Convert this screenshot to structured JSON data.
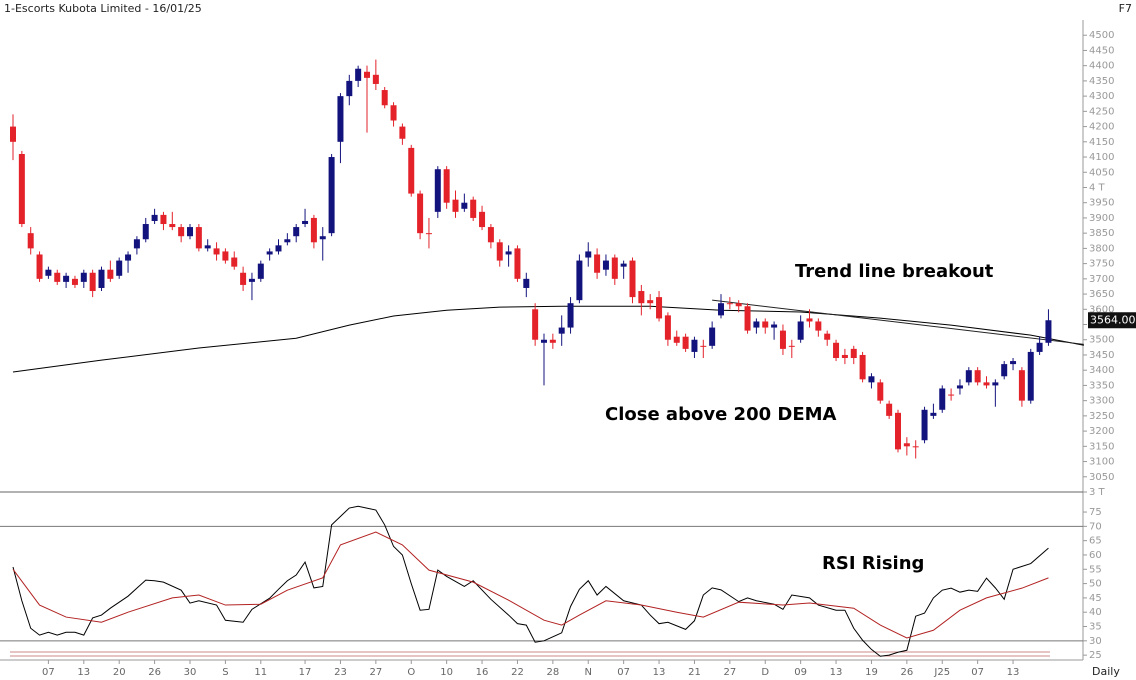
{
  "header": {
    "title": "1-Escorts Kubota Limited - 16/01/25",
    "shortcut": "F7",
    "timeframe": "Daily"
  },
  "chart_data": [
    {
      "type": "candlestick",
      "up_color": "#13137e",
      "down_color": "#e3222a",
      "open": [
        4200,
        4110,
        3850,
        3780,
        3710,
        3720,
        3690,
        3700,
        3690,
        3720,
        3670,
        3730,
        3710,
        3760,
        3800,
        3830,
        3890,
        3910,
        3880,
        3870,
        3840,
        3870,
        3800,
        3800,
        3790,
        3770,
        3720,
        3690,
        3700,
        3780,
        3790,
        3820,
        3840,
        3880,
        3900,
        3830,
        3850,
        4150,
        4300,
        4350,
        4380,
        4370,
        4320,
        4270,
        4200,
        4130,
        3980,
        3850,
        3920,
        4060,
        3960,
        3930,
        3960,
        3920,
        3870,
        3820,
        3780,
        3800,
        3670,
        3600,
        3490,
        3500,
        3520,
        3540,
        3630,
        3770,
        3780,
        3730,
        3770,
        3740,
        3760,
        3660,
        3630,
        3640,
        3580,
        3510,
        3510,
        3460,
        3480,
        3480,
        3580,
        3620,
        3620,
        3610,
        3540,
        3560,
        3540,
        3530,
        3480,
        3500,
        3570,
        3560,
        3520,
        3490,
        3450,
        3470,
        3450,
        3360,
        3360,
        3290,
        3260,
        3160,
        3150,
        3170,
        3250,
        3270,
        3320,
        3340,
        3360,
        3400,
        3360,
        3350,
        3380,
        3420,
        3400,
        3300,
        3460,
        3490
      ],
      "high": [
        4240,
        4120,
        3870,
        3790,
        3740,
        3730,
        3720,
        3710,
        3730,
        3730,
        3740,
        3760,
        3770,
        3790,
        3840,
        3900,
        3930,
        3920,
        3920,
        3880,
        3880,
        3880,
        3830,
        3820,
        3800,
        3790,
        3740,
        3720,
        3760,
        3800,
        3830,
        3850,
        3880,
        3930,
        3910,
        3870,
        4110,
        4310,
        4370,
        4400,
        4400,
        4420,
        4330,
        4280,
        4210,
        4140,
        3990,
        3900,
        4070,
        4070,
        3990,
        3980,
        3970,
        3940,
        3880,
        3830,
        3810,
        3810,
        3720,
        3620,
        3520,
        3520,
        3580,
        3640,
        3780,
        3820,
        3800,
        3780,
        3780,
        3760,
        3770,
        3680,
        3650,
        3660,
        3590,
        3530,
        3520,
        3510,
        3500,
        3560,
        3650,
        3640,
        3630,
        3620,
        3570,
        3570,
        3560,
        3550,
        3500,
        3580,
        3600,
        3570,
        3530,
        3500,
        3470,
        3480,
        3460,
        3390,
        3370,
        3300,
        3270,
        3180,
        3170,
        3280,
        3290,
        3350,
        3340,
        3370,
        3410,
        3410,
        3380,
        3370,
        3430,
        3440,
        3410,
        3470,
        3510,
        3600
      ],
      "low": [
        4090,
        3870,
        3780,
        3690,
        3700,
        3680,
        3670,
        3670,
        3670,
        3640,
        3660,
        3690,
        3700,
        3720,
        3780,
        3820,
        3880,
        3860,
        3860,
        3820,
        3830,
        3790,
        3790,
        3760,
        3750,
        3730,
        3660,
        3630,
        3690,
        3760,
        3780,
        3810,
        3820,
        3870,
        3800,
        3760,
        3840,
        4080,
        4270,
        4330,
        4180,
        4320,
        4260,
        4200,
        4140,
        3970,
        3830,
        3800,
        3900,
        3930,
        3900,
        3920,
        3890,
        3860,
        3800,
        3740,
        3740,
        3690,
        3640,
        3480,
        3350,
        3470,
        3480,
        3520,
        3620,
        3740,
        3700,
        3710,
        3680,
        3700,
        3620,
        3580,
        3600,
        3560,
        3480,
        3480,
        3460,
        3440,
        3440,
        3470,
        3570,
        3600,
        3590,
        3520,
        3520,
        3520,
        3500,
        3450,
        3440,
        3490,
        3540,
        3510,
        3480,
        3430,
        3420,
        3420,
        3360,
        3340,
        3290,
        3240,
        3130,
        3120,
        3110,
        3160,
        3240,
        3260,
        3300,
        3320,
        3350,
        3350,
        3340,
        3280,
        3370,
        3400,
        3280,
        3290,
        3450,
        3480
      ],
      "close": [
        4150,
        3880,
        3800,
        3700,
        3730,
        3690,
        3710,
        3680,
        3720,
        3660,
        3730,
        3700,
        3760,
        3780,
        3830,
        3880,
        3910,
        3880,
        3870,
        3840,
        3870,
        3800,
        3810,
        3780,
        3760,
        3740,
        3680,
        3700,
        3750,
        3790,
        3810,
        3830,
        3870,
        3890,
        3820,
        3840,
        4100,
        4300,
        4350,
        4390,
        4360,
        4340,
        4270,
        4220,
        4160,
        3980,
        3850,
        3850,
        4060,
        3950,
        3920,
        3950,
        3900,
        3870,
        3820,
        3760,
        3790,
        3700,
        3700,
        3500,
        3500,
        3490,
        3540,
        3620,
        3760,
        3790,
        3720,
        3760,
        3700,
        3750,
        3640,
        3620,
        3620,
        3570,
        3500,
        3490,
        3470,
        3500,
        3480,
        3540,
        3620,
        3620,
        3610,
        3530,
        3560,
        3540,
        3550,
        3470,
        3480,
        3560,
        3560,
        3530,
        3500,
        3440,
        3440,
        3440,
        3370,
        3380,
        3300,
        3250,
        3140,
        3150,
        3150,
        3270,
        3260,
        3340,
        3320,
        3350,
        3400,
        3360,
        3350,
        3360,
        3420,
        3430,
        3300,
        3460,
        3490,
        3564
      ],
      "lines": [
        {
          "color": "#000000",
          "x": [
            0,
            10,
            21,
            32,
            38,
            43,
            49,
            55,
            62,
            72,
            80,
            89,
            98,
            106,
            115,
            121
          ],
          "values": [
            3394,
            3433,
            3473,
            3505,
            3548,
            3578,
            3597,
            3607,
            3610,
            3610,
            3597,
            3591,
            3571,
            3548,
            3515,
            3482
          ]
        },
        {
          "color": "#222222",
          "x": [
            79,
            121
          ],
          "values": [
            3630,
            3485
          ]
        }
      ],
      "last_price": {
        "value": 3564,
        "label": "3564.00"
      },
      "ylim": [
        3000,
        4550
      ],
      "yticks": [
        {
          "value": 3000,
          "label": "3 T"
        },
        3050,
        3100,
        3150,
        3200,
        3250,
        3300,
        3350,
        3400,
        3450,
        3500,
        3550,
        3600,
        3650,
        3700,
        3750,
        3800,
        3850,
        3900,
        3950,
        {
          "value": 4000,
          "label": "4 T"
        },
        4050,
        4100,
        4150,
        4200,
        4250,
        4300,
        4350,
        4400,
        4450,
        4500
      ],
      "xticks": [
        {
          "value": 4,
          "label": "07"
        },
        {
          "value": 8,
          "label": "13"
        },
        {
          "value": 12,
          "label": "20"
        },
        {
          "value": 16,
          "label": "26"
        },
        {
          "value": 20,
          "label": "30"
        },
        {
          "value": 24,
          "label": "S"
        },
        {
          "value": 28,
          "label": "11"
        },
        {
          "value": 33,
          "label": "17"
        },
        {
          "value": 37,
          "label": "23"
        },
        {
          "value": 41,
          "label": "27"
        },
        {
          "value": 45,
          "label": "O"
        },
        {
          "value": 49,
          "label": "10"
        },
        {
          "value": 53,
          "label": "16"
        },
        {
          "value": 57,
          "label": "22"
        },
        {
          "value": 61,
          "label": "28"
        },
        {
          "value": 65,
          "label": "N"
        },
        {
          "value": 69,
          "label": "07"
        },
        {
          "value": 73,
          "label": "13"
        },
        {
          "value": 77,
          "label": "21"
        },
        {
          "value": 81,
          "label": "27"
        },
        {
          "value": 85,
          "label": "D"
        },
        {
          "value": 89,
          "label": "09"
        },
        {
          "value": 93,
          "label": "13"
        },
        {
          "value": 97,
          "label": "19"
        },
        {
          "value": 101,
          "label": "26"
        },
        {
          "value": 105,
          "label": "J25"
        },
        {
          "value": 109,
          "label": "07"
        },
        {
          "value": 113,
          "label": "13"
        }
      ],
      "annotations": [
        "Trend line breakout",
        "Close above 200 DEMA"
      ]
    },
    {
      "type": "line",
      "series": [
        {
          "color": "#000000",
          "x": [
            0,
            1,
            2,
            3,
            4,
            5,
            6,
            7,
            8,
            9,
            10,
            11,
            13,
            14,
            15,
            16,
            17,
            19,
            20,
            21,
            23,
            24,
            26,
            27,
            29,
            30,
            31,
            32,
            33,
            34,
            35,
            36,
            38,
            39,
            41,
            42,
            43,
            44,
            45,
            46,
            47,
            48,
            49,
            51,
            52,
            54,
            56,
            57,
            58,
            59,
            60,
            62,
            63,
            64,
            65,
            66,
            67,
            69,
            71,
            72,
            73,
            74,
            76,
            77,
            78,
            79,
            80,
            82,
            83,
            84,
            86,
            87,
            88,
            90,
            91,
            93,
            94,
            95,
            96,
            97,
            98,
            99,
            100,
            101,
            102,
            103,
            104,
            105,
            106,
            107,
            108,
            109,
            110,
            111,
            112,
            113,
            115,
            117
          ],
          "values": [
            55.8,
            44,
            34.4,
            32,
            33,
            32,
            33,
            33,
            32,
            38,
            39,
            41.4,
            45.6,
            48.4,
            51.2,
            51,
            50.5,
            47.7,
            43.2,
            44,
            42.5,
            37.2,
            36.5,
            41,
            44.9,
            48,
            51,
            53,
            57.5,
            48.5,
            49,
            70.5,
            76.4,
            77,
            75.7,
            70.5,
            63,
            60,
            50,
            40.7,
            41,
            54.7,
            52.5,
            49,
            51,
            44.5,
            39,
            36,
            35.5,
            29.5,
            30,
            32.8,
            42,
            48,
            51,
            46,
            49,
            44,
            42.5,
            39,
            36,
            36.5,
            34,
            37,
            46,
            48.5,
            47.8,
            43.7,
            45,
            44,
            42.8,
            41,
            46,
            45,
            42.5,
            40.7,
            40.7,
            34.4,
            30.2,
            27,
            24.6,
            25,
            26,
            26.7,
            38.6,
            39.7,
            45,
            47.7,
            48.4,
            47,
            47.7,
            47.3,
            51.9,
            48.5,
            44.5,
            55,
            57,
            62.4
          ]
        },
        {
          "color": "#b22222",
          "x": [
            0,
            3,
            6,
            10,
            13,
            18,
            21,
            24,
            28,
            31,
            35,
            37,
            41,
            44,
            47,
            52,
            56,
            60,
            62,
            64,
            67,
            71,
            75,
            78,
            82,
            87,
            90,
            95,
            98,
            101,
            104,
            107,
            110,
            114,
            117
          ],
          "values": [
            55,
            42.5,
            38.3,
            36.5,
            40,
            45,
            46,
            42.5,
            42.8,
            47.7,
            52,
            63.5,
            68,
            63.5,
            54.7,
            50.5,
            44.2,
            37.2,
            35.5,
            39,
            44,
            42.5,
            40,
            38.3,
            43.5,
            42.5,
            43.2,
            41.4,
            35.5,
            31,
            33.7,
            40.7,
            45,
            48.4,
            52
          ]
        }
      ],
      "levels": [
        70,
        30
      ],
      "ylim": [
        24,
        82
      ],
      "yticks": [
        25,
        30,
        35,
        40,
        45,
        50,
        55,
        60,
        65,
        70,
        75
      ],
      "annotations": [
        "RSI Rising"
      ]
    }
  ]
}
